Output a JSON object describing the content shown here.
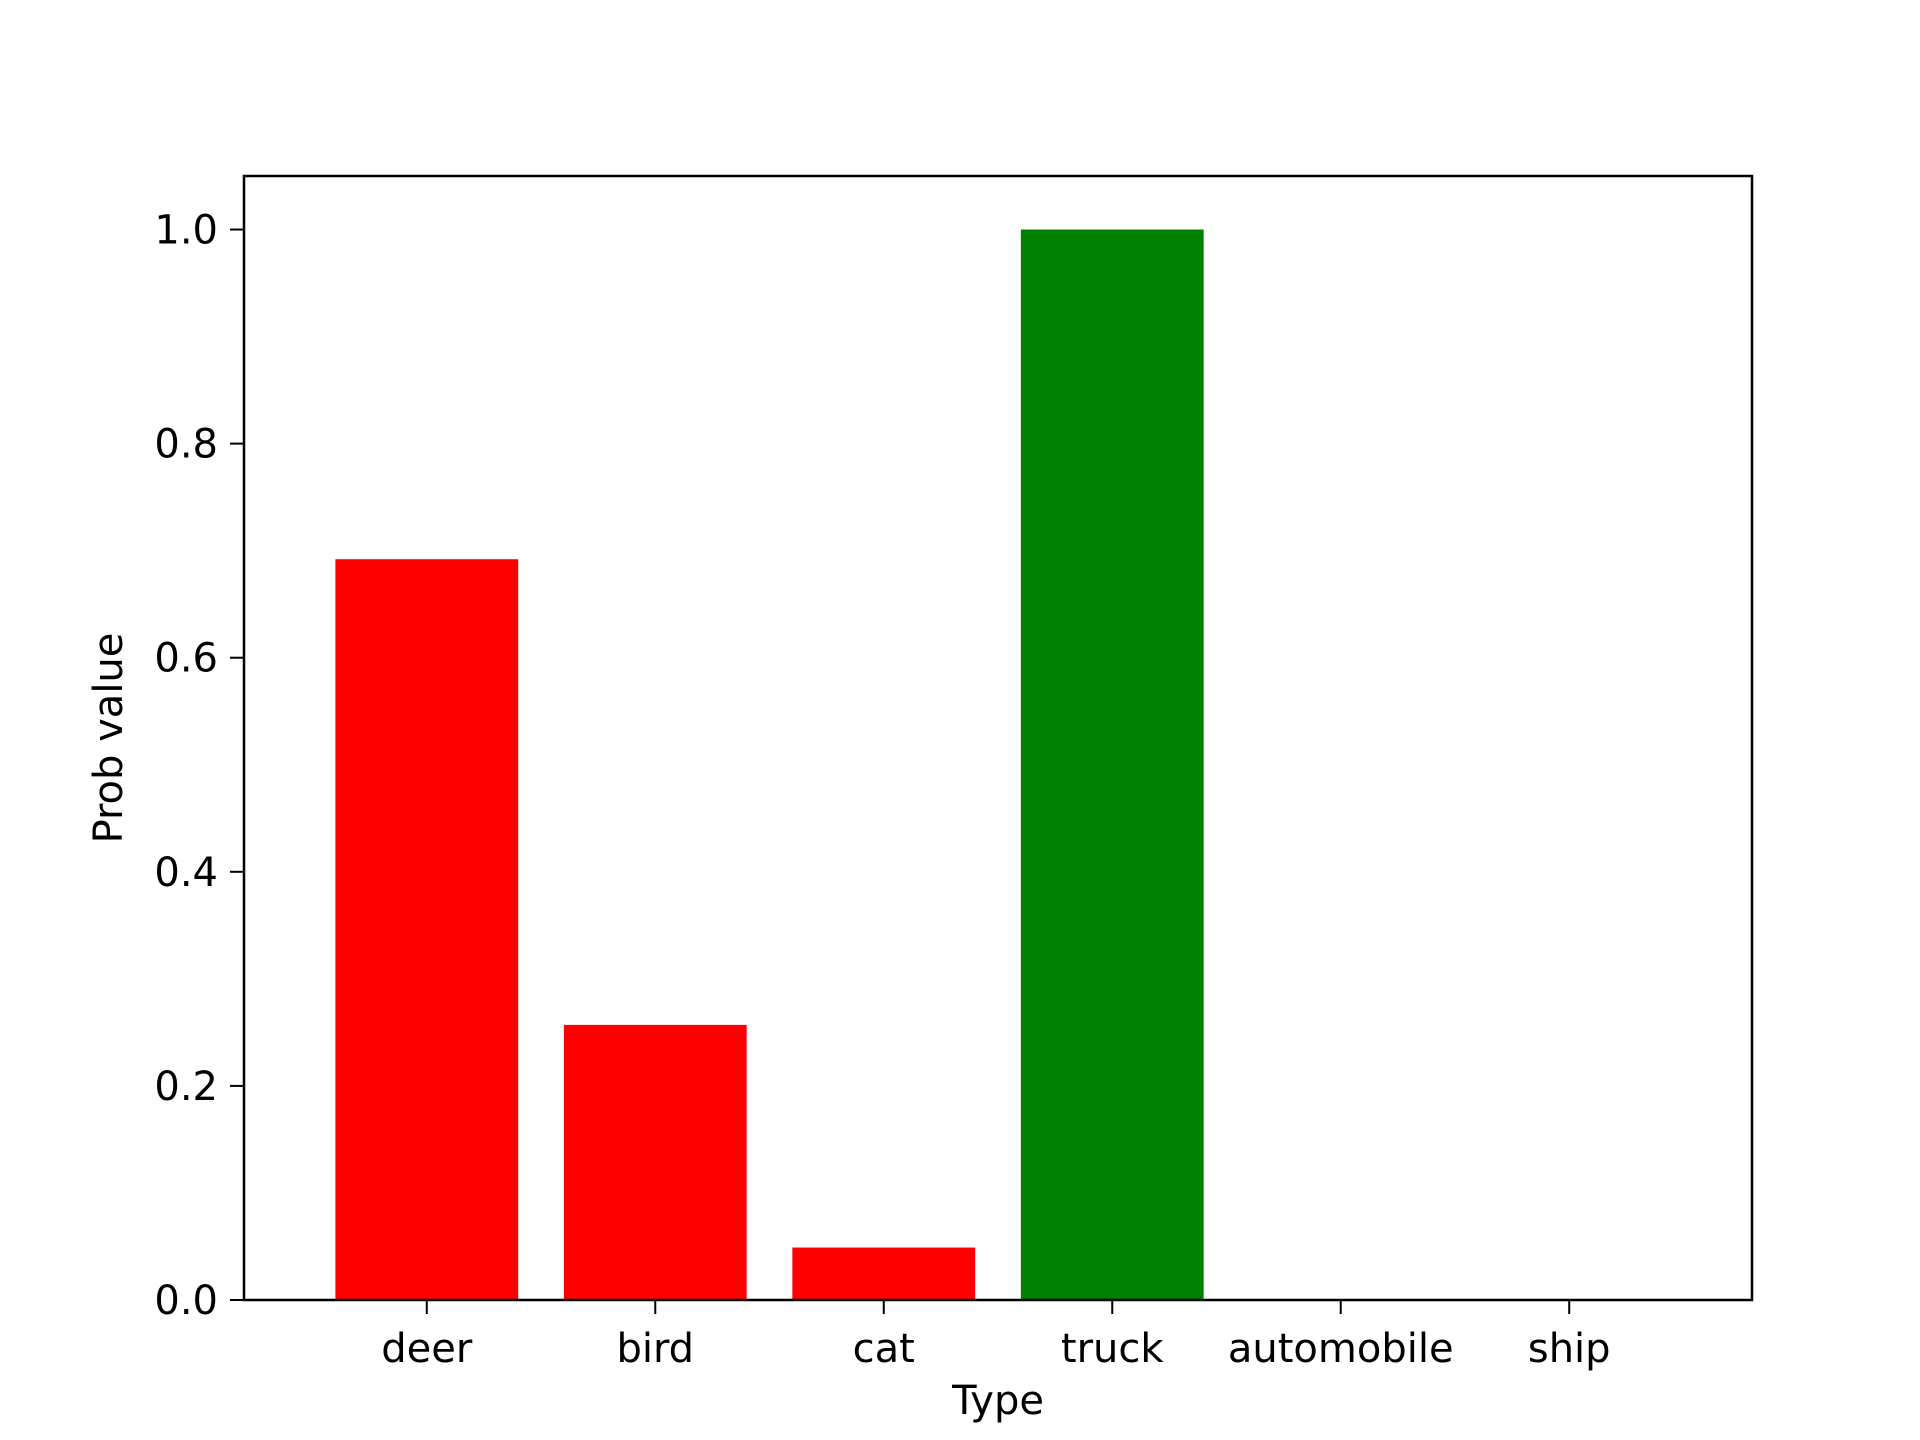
{
  "chart_data": {
    "type": "bar",
    "title": "",
    "xlabel": "Type",
    "ylabel": "Prob value",
    "categories": [
      "deer",
      "bird",
      "cat",
      "truck",
      "automobile",
      "ship"
    ],
    "values": [
      0.692,
      0.257,
      0.049,
      1.0,
      0.0,
      0.0
    ],
    "colors": [
      "#ff0000",
      "#ff0000",
      "#ff0000",
      "#008000",
      "#ff0000",
      "#ff0000"
    ],
    "ylim": [
      0,
      1.05
    ],
    "yticks": [
      0.0,
      0.2,
      0.4,
      0.6,
      0.8,
      1.0
    ],
    "ytick_labels": [
      "0.0",
      "0.2",
      "0.4",
      "0.6",
      "0.8",
      "1.0"
    ],
    "grid": false,
    "legend": "none"
  }
}
